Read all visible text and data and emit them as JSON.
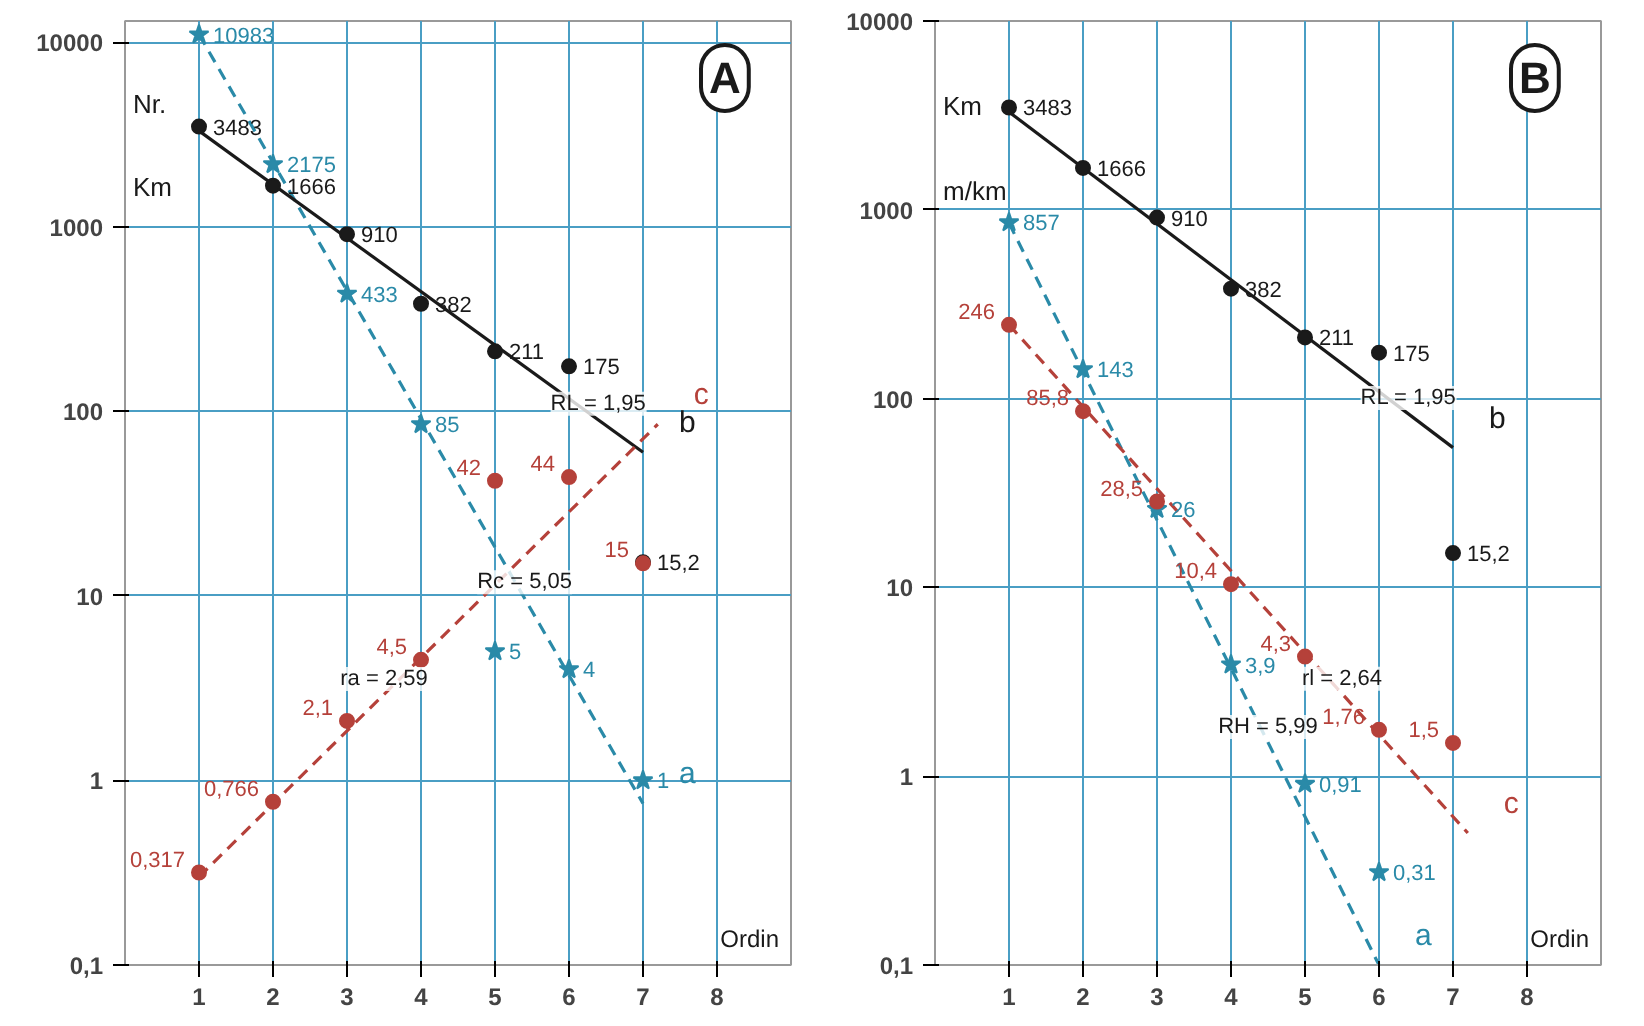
{
  "chart_data": [
    {
      "type": "scatter",
      "title": "A",
      "xlabel": "Ordin",
      "xlim": [
        0,
        9
      ],
      "xticks": [
        1,
        2,
        3,
        4,
        5,
        6,
        7,
        8
      ],
      "ylim": [
        0.1,
        13000
      ],
      "log": true,
      "grid": true,
      "yticks": [
        {
          "value": 0.1,
          "label": "0,1"
        },
        1,
        10,
        100,
        1000,
        10000
      ],
      "annotations": [
        "Nr.",
        "Km",
        {
          "text": "RL = 1,95",
          "x": 6.4,
          "y": 90
        },
        {
          "text": "Rc = 5,05",
          "x": 5.4,
          "y": 9.7
        },
        {
          "text": "ra = 2,59",
          "x": 3.5,
          "y": 2.9
        }
      ],
      "series": [
        {
          "type": "line",
          "name": "a",
          "color": "#2a8aa8",
          "line_style": "dashed",
          "x": [
            1,
            7
          ],
          "values": [
            11000,
            0.75
          ]
        },
        {
          "type": "line",
          "name": "b",
          "color": "#1a1a1a",
          "line_style": "solid",
          "x": [
            1,
            7
          ],
          "values": [
            3300,
            60
          ]
        },
        {
          "type": "line",
          "name": "c",
          "color": "#b5413a",
          "line_style": "dashed",
          "x": [
            1,
            7.2
          ],
          "values": [
            0.3,
            85
          ]
        },
        {
          "marker": "star",
          "color": "#2a8aa8",
          "x": [
            1,
            2,
            3,
            4,
            5,
            6,
            7
          ],
          "values": [
            10983,
            2175,
            433,
            85,
            5,
            4,
            1
          ],
          "value_labels": [
            "10983",
            "2175",
            "433",
            "85",
            "5",
            "4",
            "1"
          ]
        },
        {
          "marker": "circle",
          "color": "#1a1a1a",
          "x": [
            1,
            2,
            3,
            4,
            5,
            6,
            7
          ],
          "values": [
            3483,
            1666,
            910,
            382,
            211,
            175,
            15.2
          ],
          "value_labels": [
            "3483",
            "1666",
            "910",
            "382",
            "211",
            "175",
            "15,2"
          ]
        },
        {
          "marker": "circle",
          "color": "#b5413a",
          "x": [
            1,
            2,
            3,
            4,
            5,
            6,
            7
          ],
          "values": [
            0.317,
            0.766,
            2.1,
            4.5,
            42,
            44,
            15
          ],
          "value_labels": [
            "0,317",
            "0,766",
            "2,1",
            "4,5",
            "42",
            "44",
            "15"
          ]
        }
      ]
    },
    {
      "type": "scatter",
      "title": "B",
      "xlabel": "Ordin",
      "xlim": [
        0,
        9
      ],
      "xticks": [
        1,
        2,
        3,
        4,
        5,
        6,
        7,
        8
      ],
      "ylim": [
        0.1,
        10000
      ],
      "log": true,
      "grid": true,
      "yticks": [
        {
          "value": 0.1,
          "label": "0,1"
        },
        1,
        10,
        100,
        1000,
        10000
      ],
      "annotations": [
        "Km",
        "m/km",
        {
          "text": "RL = 1,95",
          "x": 6.4,
          "y": 83
        },
        {
          "text": "RH = 5,99",
          "x": 4.5,
          "y": 1.5
        },
        {
          "text": "rl = 2,64",
          "x": 5.5,
          "y": 2.7
        }
      ],
      "series": [
        {
          "type": "line",
          "name": "a",
          "color": "#2a8aa8",
          "line_style": "dashed",
          "x": [
            1,
            6
          ],
          "values": [
            850,
            0.1
          ]
        },
        {
          "type": "line",
          "name": "b",
          "color": "#1a1a1a",
          "line_style": "solid",
          "x": [
            1,
            7
          ],
          "values": [
            3300,
            55
          ]
        },
        {
          "type": "line",
          "name": "c",
          "color": "#b5413a",
          "line_style": "dashed",
          "x": [
            1,
            7.2
          ],
          "values": [
            246,
            0.5
          ]
        },
        {
          "marker": "star",
          "color": "#2a8aa8",
          "x": [
            1,
            2,
            3,
            4,
            5,
            6
          ],
          "values": [
            857,
            143,
            26,
            3.9,
            0.91,
            0.31
          ],
          "value_labels": [
            "857",
            "143",
            "26",
            "3,9",
            "0,91",
            "0,31"
          ]
        },
        {
          "marker": "circle",
          "color": "#1a1a1a",
          "x": [
            1,
            2,
            3,
            4,
            5,
            6,
            7
          ],
          "values": [
            3483,
            1666,
            910,
            382,
            211,
            175,
            15.2
          ],
          "value_labels": [
            "3483",
            "1666",
            "910",
            "382",
            "211",
            "175",
            "15,2"
          ]
        },
        {
          "marker": "circle",
          "color": "#b5413a",
          "x": [
            1,
            2,
            3,
            4,
            5,
            6,
            7
          ],
          "values": [
            246,
            85.8,
            28.5,
            10.4,
            4.3,
            1.76,
            1.5
          ],
          "value_labels": [
            "246",
            "85,8",
            "28,5",
            "10,4",
            "4,3",
            "1,76",
            "1,5"
          ]
        }
      ]
    }
  ]
}
